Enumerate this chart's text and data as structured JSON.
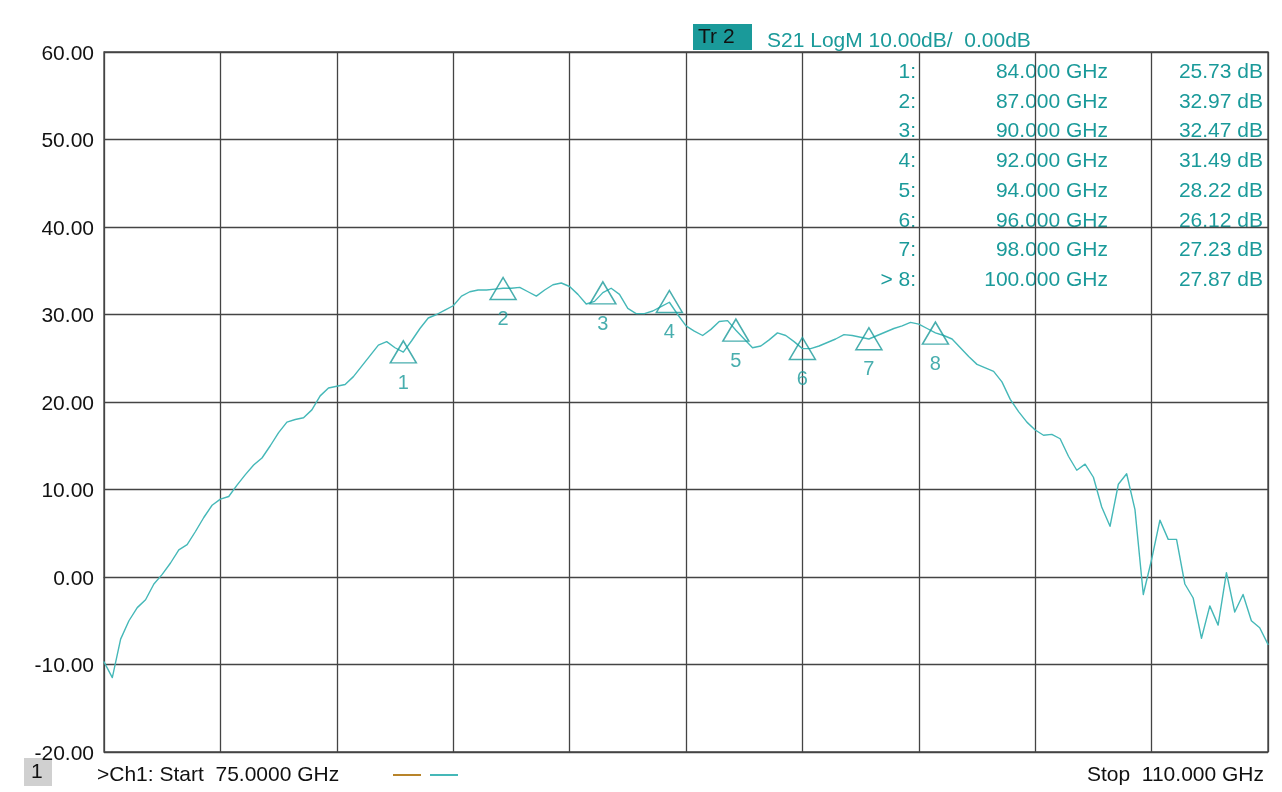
{
  "chart_data": {
    "type": "line",
    "title": "S21 LogM 10.00dB/  0.00dB",
    "annotations": [
      "Tr 2",
      "1:  84.000 GHz  25.73 dB",
      "2:  87.000 GHz  32.97 dB",
      "3:  90.000 GHz  32.47 dB",
      "4:  92.000 GHz  31.49 dB",
      "5:  94.000 GHz  28.22 dB",
      "6:  96.000 GHz  26.12 dB",
      "7:  98.000 GHz  27.23 dB",
      "> 8:  100.000 GHz  27.87 dB",
      "1",
      ">Ch1: Start  75.0000 GHz",
      "Stop  110.000 GHz",
      "1",
      "2",
      "3",
      "4",
      "5",
      "6",
      "7",
      "8"
    ],
    "categories": [
      null,
      null,
      null,
      null,
      null,
      null,
      null,
      null,
      null,
      null,
      null,
      null,
      null,
      null,
      null,
      null,
      null,
      null,
      null,
      null,
      null,
      null,
      null,
      null,
      null,
      null,
      null,
      null,
      null,
      null,
      null,
      null,
      null,
      null,
      null,
      null,
      null,
      null,
      null,
      null,
      null,
      null,
      null,
      null,
      null,
      null,
      null,
      null,
      null,
      null,
      null,
      null,
      null,
      null,
      null,
      null,
      null,
      null,
      null,
      null,
      null,
      null,
      null,
      null,
      null,
      null,
      null,
      null,
      null,
      null,
      null,
      null,
      null,
      null,
      null,
      null,
      null,
      null,
      null,
      null,
      null,
      null,
      null,
      null,
      null,
      null,
      null,
      null,
      null,
      null,
      null,
      null,
      null,
      null,
      null,
      null,
      null,
      null,
      null,
      null,
      null,
      null,
      null,
      null,
      null,
      null,
      null,
      null,
      null,
      null,
      null,
      null,
      null,
      null,
      null,
      null,
      null,
      null,
      null,
      null,
      null,
      null,
      null,
      null,
      null,
      null,
      null,
      null,
      null,
      null,
      null,
      null,
      null,
      null,
      null,
      null,
      null,
      null,
      null,
      null,
      null
    ],
    "ylim": [
      -20,
      60
    ],
    "yticks": [
      {
        "value": -20,
        "label": "-20.00"
      },
      {
        "value": -10,
        "label": "-10.00"
      },
      {
        "value": 0,
        "label": "0.00"
      },
      {
        "value": 10,
        "label": "10.00"
      },
      {
        "value": 20,
        "label": "20.00"
      },
      {
        "value": 30,
        "label": "30.00"
      },
      {
        "value": 40,
        "label": "40.00"
      },
      {
        "value": 50,
        "label": "50.00"
      },
      {
        "value": 60,
        "label": "60.00"
      }
    ],
    "tick_labels": "y",
    "grid": true,
    "marker": "none",
    "line_style": "solid",
    "series": [
      {
        "color": "#45b8b8",
        "values": [
          -9.7,
          -11.5,
          -7.1,
          -5.0,
          -3.5,
          -2.6,
          -0.8,
          0.3,
          1.6,
          3.1,
          3.7,
          5.2,
          6.8,
          8.2,
          8.9,
          9.2,
          10.5,
          11.7,
          12.8,
          13.6,
          15.0,
          16.5,
          17.7,
          18.0,
          18.2,
          19.1,
          20.7,
          21.6,
          21.8,
          22.0,
          22.9,
          24.1,
          25.3,
          26.5,
          26.9,
          26.2,
          25.7,
          27.0,
          28.4,
          29.6,
          30.0,
          30.5,
          31.0,
          32.1,
          32.6,
          32.8,
          32.8,
          32.9,
          33.0,
          33.0,
          33.1,
          32.6,
          32.1,
          32.8,
          33.4,
          33.6,
          33.2,
          32.3,
          31.2,
          31.5,
          32.5,
          33.0,
          32.3,
          30.7,
          30.1,
          30.1,
          30.4,
          30.9,
          31.4,
          30.0,
          28.7,
          28.1,
          27.6,
          28.3,
          29.2,
          29.3,
          28.2,
          27.2,
          26.2,
          26.4,
          27.1,
          27.9,
          27.6,
          26.9,
          26.1,
          26.1,
          26.4,
          26.8,
          27.2,
          27.7,
          27.6,
          27.4,
          27.2,
          27.6,
          28.0,
          28.4,
          28.7,
          29.1,
          28.9,
          28.4,
          27.9,
          27.6,
          27.2,
          26.2,
          25.2,
          24.3,
          23.9,
          23.5,
          22.3,
          20.3,
          18.9,
          17.7,
          16.8,
          16.2,
          16.3,
          15.8,
          13.8,
          12.2,
          12.9,
          11.4,
          8.0,
          5.8,
          10.6,
          11.8,
          7.7,
          -2.0,
          2.0,
          6.5,
          4.3,
          4.3,
          -0.8,
          -2.4,
          -7.0,
          -3.3,
          -5.5,
          0.5,
          -4.0,
          -2.0,
          -5.0,
          -5.8,
          -7.7
        ]
      },
      {
        "type": "scatter",
        "color": "#1a9a9a",
        "marker": "triangle",
        "values": [
          null,
          null,
          null,
          null,
          null,
          null,
          null,
          null,
          null,
          null,
          null,
          null,
          null,
          null,
          null,
          null,
          null,
          null,
          null,
          null,
          null,
          null,
          null,
          null,
          null,
          null,
          null,
          null,
          null,
          null,
          null,
          null,
          null,
          null,
          null,
          null,
          25.73,
          null,
          null,
          null,
          null,
          null,
          null,
          null,
          null,
          null,
          null,
          null,
          32.97,
          null,
          null,
          null,
          null,
          null,
          null,
          null,
          null,
          null,
          null,
          null,
          32.47,
          null,
          null,
          null,
          null,
          null,
          null,
          null,
          31.49,
          null,
          null,
          null,
          null,
          null,
          null,
          null,
          28.22,
          null,
          null,
          null,
          null,
          null,
          null,
          null,
          26.12,
          null,
          null,
          null,
          null,
          null,
          null,
          null,
          27.23,
          null,
          null,
          null,
          null,
          null,
          null,
          null,
          27.87,
          null,
          null,
          null,
          null,
          null,
          null,
          null,
          null,
          null,
          null,
          null,
          null,
          null,
          null,
          null,
          null,
          null,
          null,
          null,
          null,
          null,
          null,
          null,
          null,
          null,
          null,
          null,
          null,
          null,
          null,
          null,
          null,
          null,
          null,
          null,
          null,
          null,
          null,
          null,
          null
        ]
      }
    ]
  }
}
